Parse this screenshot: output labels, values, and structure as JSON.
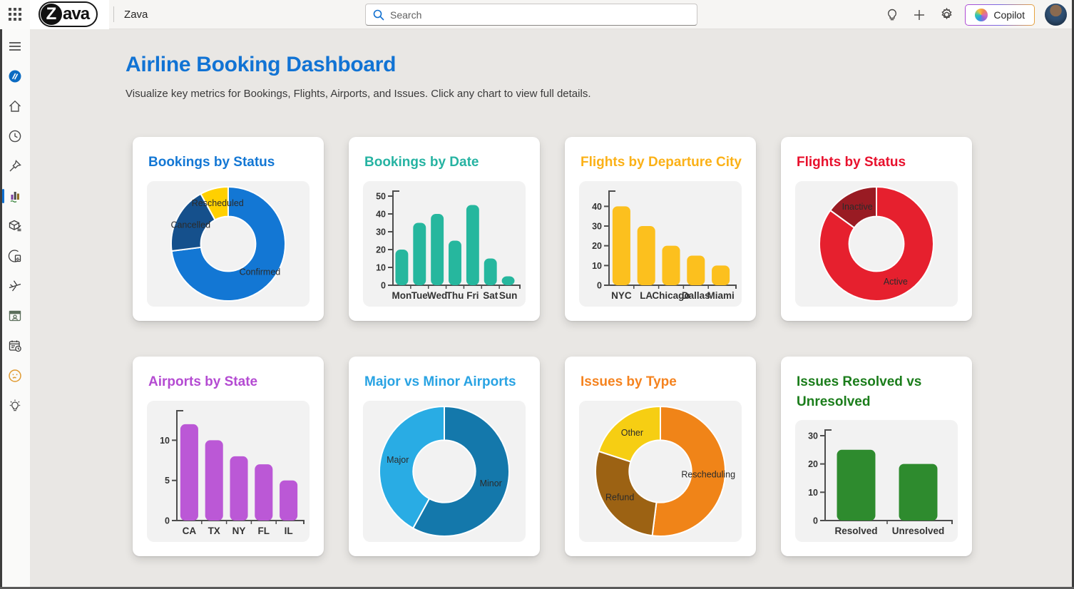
{
  "topbar": {
    "logo": {
      "letter": "Z",
      "rest": "ava"
    },
    "product_name": "Zava",
    "search": {
      "placeholder": "Search"
    },
    "copilot_label": "Copilot",
    "icons": [
      "waffle-icon",
      "lightbulb-icon",
      "plus-icon",
      "gear-icon",
      "copilot-logo",
      "avatar"
    ],
    "accent_color": "#0f6fd0"
  },
  "sidebar": {
    "selected_index": 5,
    "items": [
      {
        "icon": "menu-icon"
      },
      {
        "icon": "app-logo-icon"
      },
      {
        "icon": "home-icon"
      },
      {
        "icon": "recent-clock-icon"
      },
      {
        "icon": "pin-icon"
      },
      {
        "icon": "dashboard-app-icon"
      },
      {
        "icon": "box-edit-app-icon"
      },
      {
        "icon": "monitor-app-icon"
      },
      {
        "icon": "plane-app-icon"
      },
      {
        "icon": "contact-card-app-icon"
      },
      {
        "icon": "calendar-app-icon"
      },
      {
        "icon": "face-app-icon"
      },
      {
        "icon": "bulb-app-icon"
      }
    ]
  },
  "page": {
    "title": "Airline Booking Dashboard",
    "subtitle": "Visualize key metrics for Bookings, Flights, Airports, and Issues. Click any chart to view full details."
  },
  "chart_data": [
    {
      "id": "bookings-by-status",
      "type": "donut",
      "title": "Bookings by Status",
      "title_color": "#1377d4",
      "slices": [
        {
          "label": "Confirmed",
          "value": 73,
          "color": "#1377d4"
        },
        {
          "label": "Cancelled",
          "value": 19,
          "color": "#15508c"
        },
        {
          "label": "Rescheduled",
          "value": 8,
          "color": "#ffd000"
        }
      ],
      "legend": "none",
      "labels_on_ring": true
    },
    {
      "id": "bookings-by-date",
      "type": "bar",
      "title": "Bookings by Date",
      "title_color": "#26b3a2",
      "bar_color": "#26b79e",
      "categories": [
        "Mon",
        "Tue",
        "Wed",
        "Thu",
        "Fri",
        "Sat",
        "Sun"
      ],
      "values": [
        20,
        35,
        40,
        25,
        45,
        15,
        5
      ],
      "yticks": [
        0,
        10,
        20,
        30,
        40,
        50
      ],
      "ylim": [
        0,
        52
      ],
      "xlabel": "",
      "ylabel": "",
      "grid": false
    },
    {
      "id": "flights-by-departure-city",
      "type": "bar",
      "title": "Flights by Departure City",
      "title_color": "#fbb117",
      "bar_color": "#fcc01e",
      "categories": [
        "NYC",
        "LA",
        "Chicago",
        "Dallas",
        "Miami"
      ],
      "values": [
        40,
        30,
        20,
        15,
        10
      ],
      "yticks": [
        0,
        10,
        20,
        30,
        40
      ],
      "ylim": [
        0,
        47
      ],
      "xlabel": "",
      "ylabel": "",
      "grid": false
    },
    {
      "id": "flights-by-status",
      "type": "donut",
      "title": "Flights by Status",
      "title_color": "#e8112d",
      "slices": [
        {
          "label": "Active",
          "value": 85,
          "color": "#e6202e"
        },
        {
          "label": "Inactive",
          "value": 15,
          "color": "#991b23"
        }
      ],
      "legend": "none",
      "labels_on_ring": true
    },
    {
      "id": "airports-by-state",
      "type": "bar",
      "title": "Airports by State",
      "title_color": "#b44bd2",
      "bar_color": "#bb58d6",
      "categories": [
        "CA",
        "TX",
        "NY",
        "FL",
        "IL"
      ],
      "values": [
        12,
        10,
        8,
        7,
        5
      ],
      "yticks": [
        0,
        5,
        10
      ],
      "ylim": [
        0,
        13.5
      ],
      "xlabel": "",
      "ylabel": "",
      "grid": false
    },
    {
      "id": "major-vs-minor-airports",
      "type": "donut",
      "title": "Major vs Minor Airports",
      "title_color": "#29a3e3",
      "slices": [
        {
          "label": "Minor",
          "value": 58,
          "color": "#1478ab"
        },
        {
          "label": "Major",
          "value": 42,
          "color": "#29ace4"
        }
      ],
      "legend": "none",
      "labels_on_ring": true
    },
    {
      "id": "issues-by-type",
      "type": "donut",
      "title": "Issues by Type",
      "title_color": "#f5831f",
      "slices": [
        {
          "label": "Rescheduling",
          "value": 52,
          "color": "#f08418"
        },
        {
          "label": "Refund",
          "value": 28,
          "color": "#9c6213"
        },
        {
          "label": "Other",
          "value": 20,
          "color": "#f6ce13"
        }
      ],
      "legend": "none",
      "labels_on_ring": true
    },
    {
      "id": "issues-resolved-vs-unresolved",
      "type": "bar",
      "title": "Issues Resolved vs Unresolved",
      "title_color": "#1b7d1b",
      "bar_color": "#2e8b2e",
      "categories": [
        "Resolved",
        "Unresolved"
      ],
      "values": [
        25,
        20
      ],
      "yticks": [
        0,
        10,
        20,
        30
      ],
      "ylim": [
        0,
        31.5
      ],
      "xlabel": "",
      "ylabel": "",
      "grid": false
    }
  ]
}
